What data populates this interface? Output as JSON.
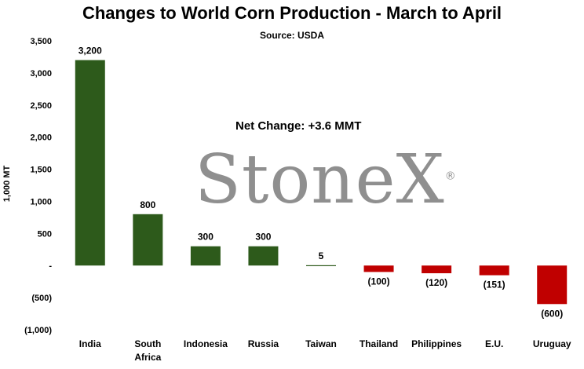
{
  "chart_data": {
    "type": "bar",
    "title": "Changes to World Corn Production - March to April",
    "subtitle": "Source: USDA",
    "ylabel": "1,000 MT",
    "xlabel": "",
    "annotation": "Net Change: +3.6 MMT",
    "watermark": "StoneX",
    "watermark_mark": "®",
    "ylim": [
      -1000,
      3500
    ],
    "yticks": [
      3500,
      3000,
      2500,
      2000,
      1500,
      1000,
      500,
      0,
      -500,
      -1000
    ],
    "ytick_labels": [
      "3,500",
      "3,000",
      "2,500",
      "2,000",
      "1,500",
      "1,000",
      "500",
      "-",
      "(500)",
      "(1,000)"
    ],
    "categories": [
      [
        "India"
      ],
      [
        "South",
        "Africa"
      ],
      [
        "Indonesia"
      ],
      [
        "Russia"
      ],
      [
        "Taiwan"
      ],
      [
        "Thailand"
      ],
      [
        "Philippines"
      ],
      [
        "E.U."
      ],
      [
        "Uruguay"
      ]
    ],
    "values": [
      3200,
      800,
      300,
      300,
      5,
      -100,
      -120,
      -151,
      -600
    ],
    "value_labels": [
      "3,200",
      "800",
      "300",
      "300",
      "5",
      "(100)",
      "(120)",
      "(151)",
      "(600)"
    ],
    "colors": {
      "positive": "#2d5a1b",
      "negative": "#c00000"
    },
    "grid": false,
    "legend": "none"
  }
}
